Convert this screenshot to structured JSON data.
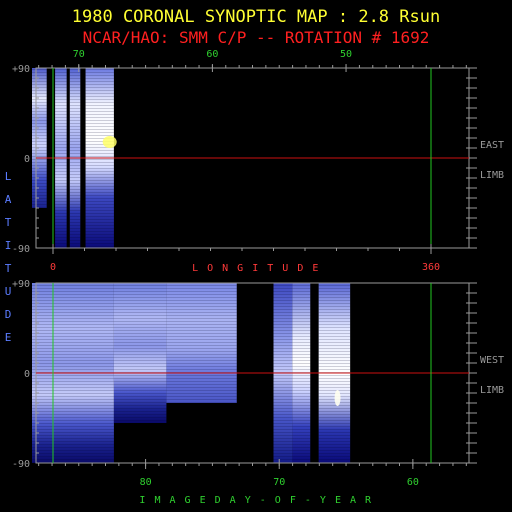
{
  "title": "1980 CORONAL SYNOPTIC MAP : 2.8 Rsun",
  "subtitle": "NCAR/HAO: SMM C/P -- ROTATION # 1692",
  "colors": {
    "background": "#000000",
    "title": "#ffff33",
    "subtitle": "#ff2020",
    "axis": "#9a9a9a",
    "latitude_text": "#5b7cff",
    "longitude_text": "#ff3a3a",
    "day_text": "#2fd12f",
    "marker_green": "#22c822",
    "equator_red": "#cc1010",
    "map_low": "#0a0a78",
    "map_mid": "#5a6ad8",
    "map_high": "#f4f4ff",
    "map_peak": "#ffff66"
  },
  "chart_data": [
    {
      "type": "heatmap",
      "name": "east-limb-map",
      "top_axis": {
        "label": "",
        "ticks": [
          "70",
          "60",
          "50"
        ],
        "tick_values": [
          70,
          60,
          50
        ],
        "range": [
          73.5,
          40.5
        ]
      },
      "bottom_axis": {
        "label": "LONGITUDE",
        "ticks": [
          "0",
          "360"
        ],
        "tick_values": [
          0,
          360
        ],
        "range": [
          -20,
          400
        ]
      },
      "y_axis": {
        "label": "LATITUDE",
        "ticks": [
          "+90",
          "0",
          "-90"
        ],
        "tick_values": [
          90,
          0,
          -90
        ],
        "range": [
          -90,
          90
        ]
      },
      "side_label": [
        "EAST",
        "LIMB"
      ],
      "markers": {
        "green_longitudes": [
          0,
          360
        ],
        "red_latitude": 0
      },
      "coverage_strips": [
        {
          "lon_start": -20,
          "lon_end": -6,
          "lat_top": 90,
          "lat_bottom": -50,
          "shape": "east-first"
        },
        {
          "lon_start": 2,
          "lon_end": 13,
          "lat_top": 90,
          "lat_bottom": -90,
          "shape": "east-full"
        },
        {
          "lon_start": 16,
          "lon_end": 26,
          "lat_top": 90,
          "lat_bottom": -90,
          "shape": "east-full"
        },
        {
          "lon_start": 31,
          "lon_end": 58,
          "lat_top": 90,
          "lat_bottom": -90,
          "shape": "east-bright"
        }
      ]
    },
    {
      "type": "heatmap",
      "name": "west-limb-map",
      "x_axis": {
        "label": "IMAGE DAY-OF-YEAR",
        "ticks": [
          "80",
          "70",
          "60"
        ],
        "tick_values": [
          80,
          70,
          60
        ],
        "range": [
          88.5,
          55.5
        ]
      },
      "y_axis": {
        "label": "LATITUDE",
        "ticks": [
          "+90",
          "0",
          "-90"
        ],
        "tick_values": [
          90,
          0,
          -90
        ],
        "range": [
          -90,
          90
        ]
      },
      "side_label": [
        "WEST",
        "LIMB"
      ],
      "markers": {
        "green_longitudes": [
          0,
          360
        ],
        "red_latitude": 0
      },
      "coverage_strips": [
        {
          "lon_start": -20,
          "lon_end": 58,
          "lat_top": 90,
          "lat_bottom": -90,
          "shape": "west-dense"
        },
        {
          "lon_start": 58,
          "lon_end": 108,
          "lat_top": 90,
          "lat_bottom": -50,
          "shape": "west-dense"
        },
        {
          "lon_start": 108,
          "lon_end": 175,
          "lat_top": 90,
          "lat_bottom": -30,
          "shape": "west-fade"
        },
        {
          "lon_start": 210,
          "lon_end": 228,
          "lat_top": 90,
          "lat_bottom": -90,
          "shape": "west-mid"
        },
        {
          "lon_start": 228,
          "lon_end": 245,
          "lat_top": 90,
          "lat_bottom": -90,
          "shape": "west-bright"
        },
        {
          "lon_start": 253,
          "lon_end": 283,
          "lat_top": 90,
          "lat_bottom": -90,
          "shape": "west-peak"
        }
      ]
    }
  ]
}
